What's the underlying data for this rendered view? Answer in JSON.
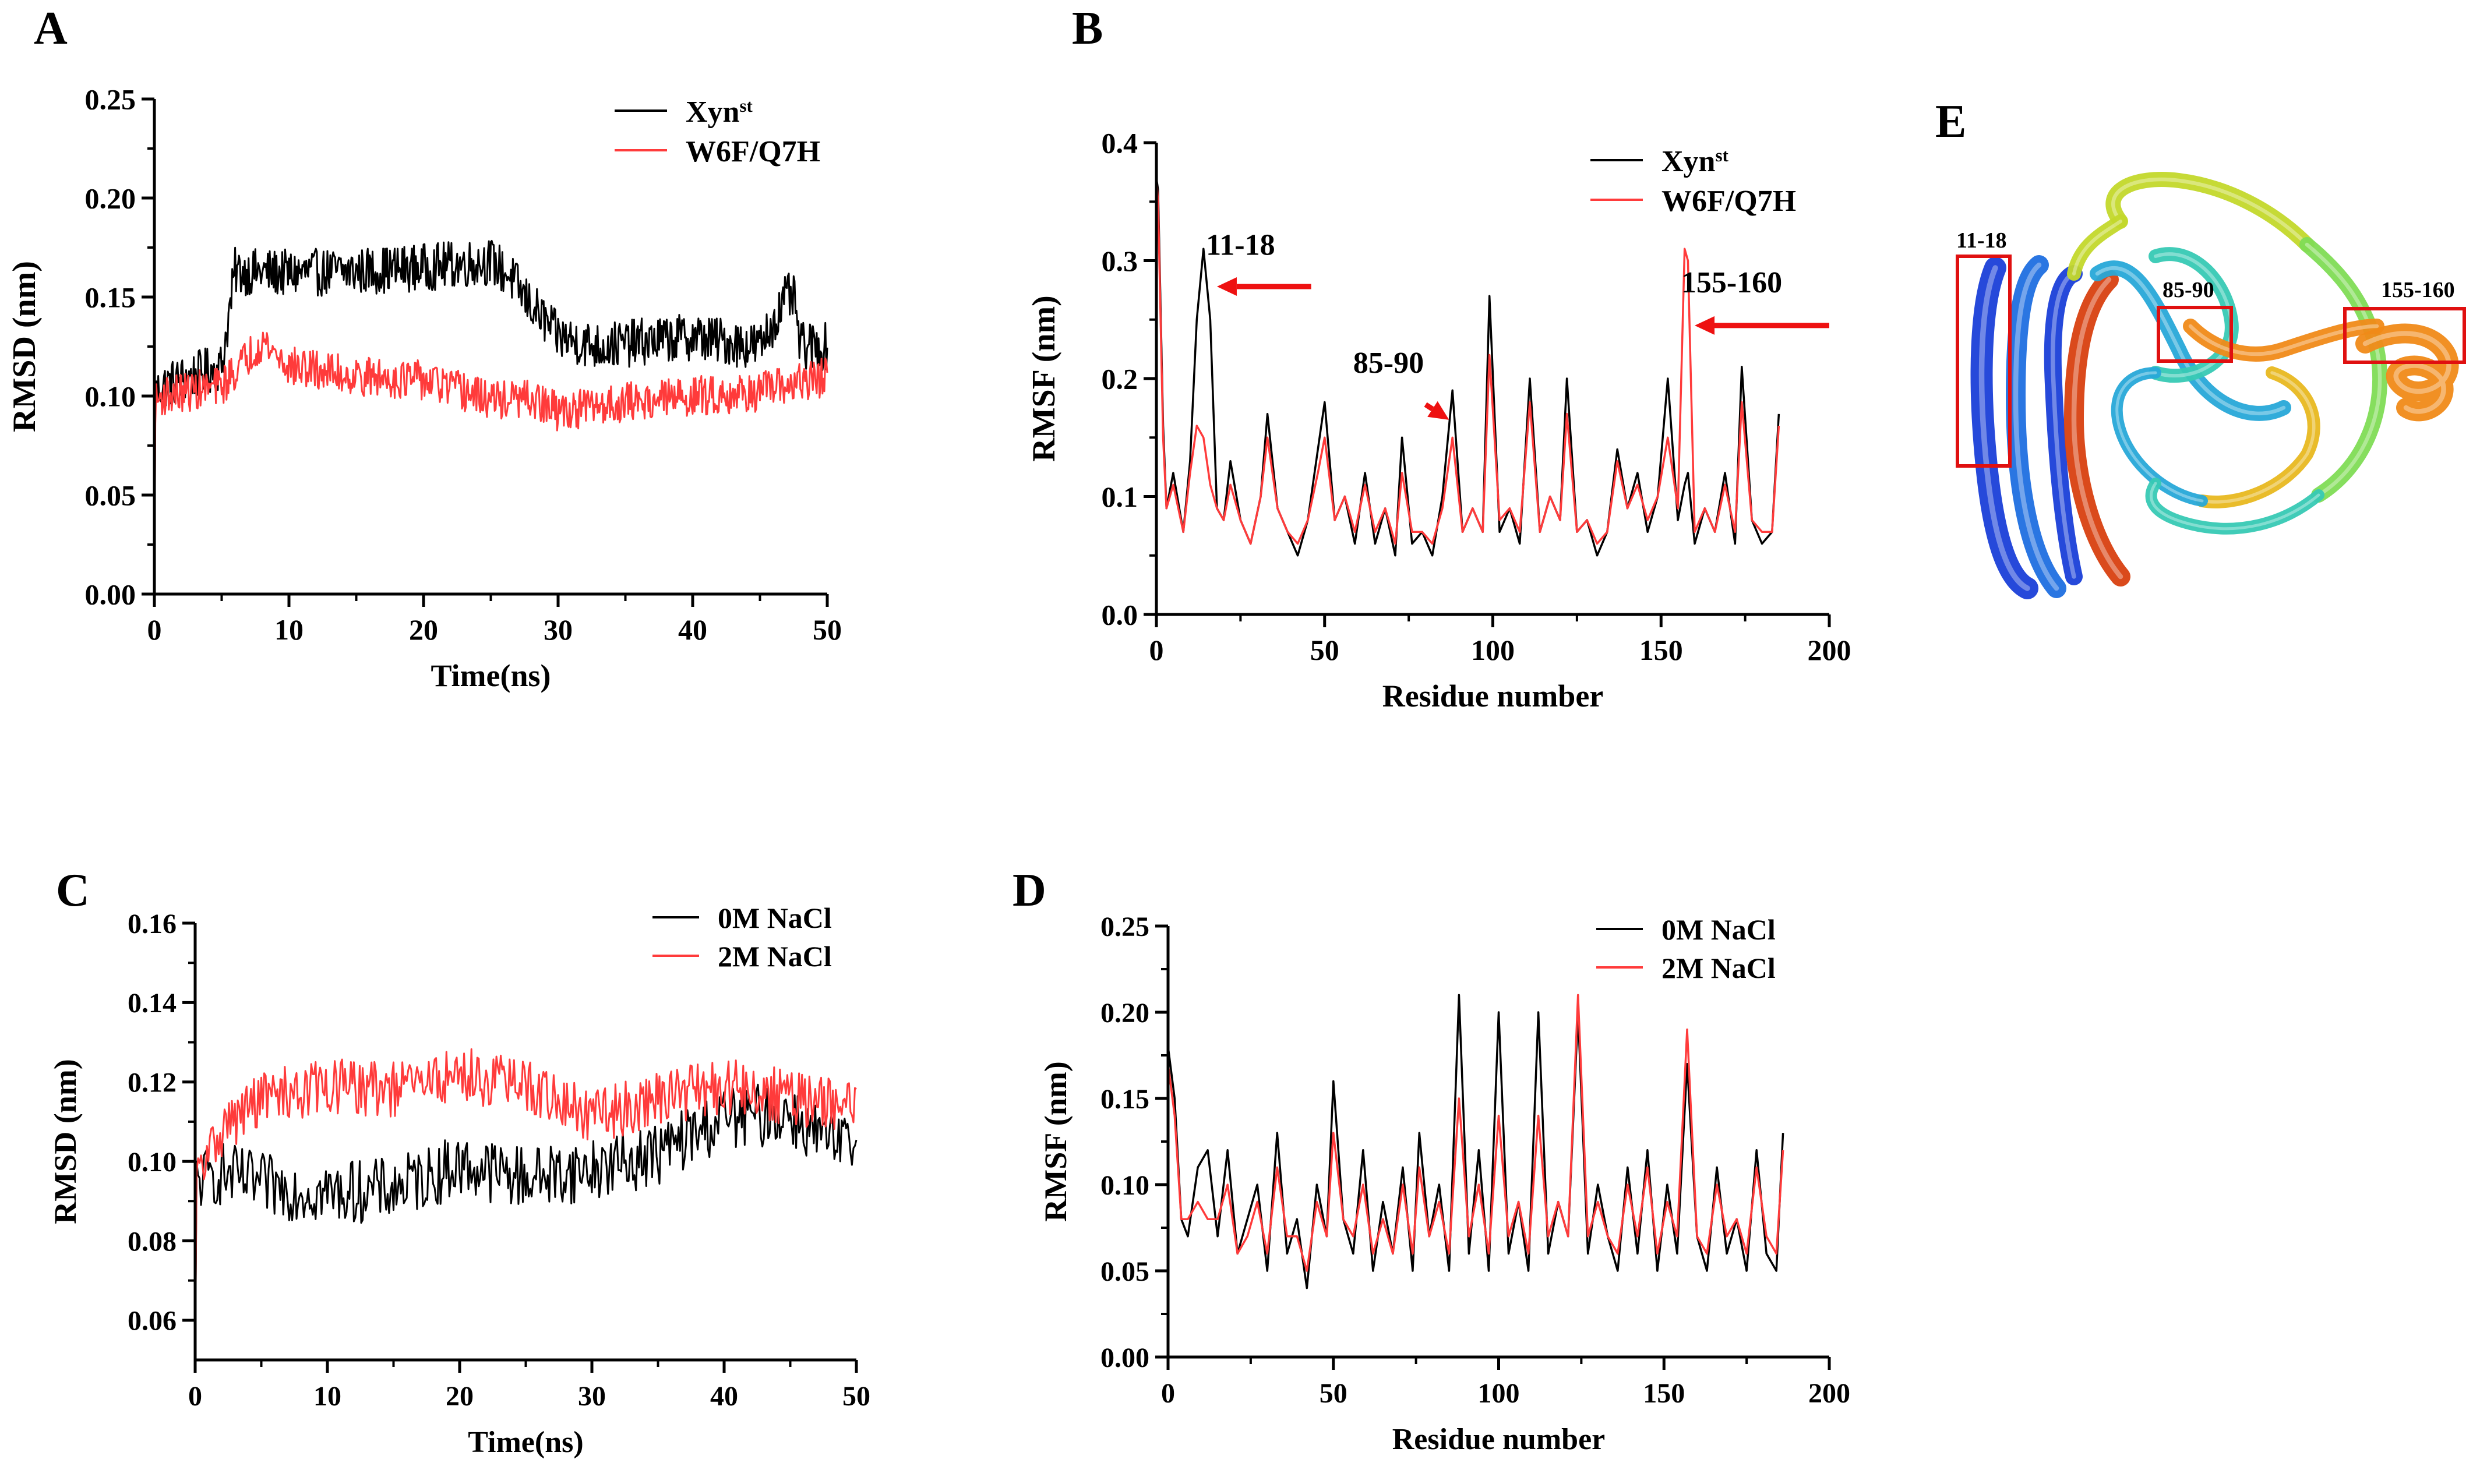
{
  "colors": {
    "series_a": "#000000",
    "series_b": "#ff3b3b",
    "annotation": "#ee1111",
    "box": "#e01010"
  },
  "panels": {
    "A": {
      "letter": "A"
    },
    "B": {
      "letter": "B"
    },
    "C": {
      "letter": "C"
    },
    "D": {
      "letter": "D"
    },
    "E": {
      "letter": "E",
      "region_labels": [
        "11-18",
        "85-90",
        "155-160"
      ],
      "ribbon_colors": [
        "#1a3fd8",
        "#1f6fe0",
        "#27a8d8",
        "#37c9b4",
        "#7fdc55",
        "#c3d82b",
        "#e8b820",
        "#f08a18",
        "#d84010"
      ]
    }
  },
  "chart_data": [
    {
      "id": "A",
      "type": "line",
      "xlabel": "Time(ns)",
      "ylabel": "RMSD (nm)",
      "xlim": [
        0,
        50
      ],
      "ylim": [
        0,
        0.25
      ],
      "xticks": [
        0,
        10,
        20,
        30,
        40,
        50
      ],
      "yticks": [
        0.0,
        0.05,
        0.1,
        0.15,
        0.2,
        0.25
      ],
      "ytick_labels": [
        "0.00",
        "0.05",
        "0.10",
        "0.15",
        "0.20",
        "0.25"
      ],
      "legend": "top-right",
      "grid": false,
      "series": [
        {
          "name": "Xyn",
          "name_sup": "st",
          "color": "#000000",
          "n": 700,
          "noise": 0.012,
          "x": [
            0,
            0.5,
            5,
            6,
            10,
            15,
            20,
            25,
            26.5,
            27.5,
            30,
            33,
            40,
            45,
            47,
            47.5,
            48,
            50
          ],
          "y": [
            0.1,
            0.105,
            0.115,
            0.163,
            0.162,
            0.163,
            0.165,
            0.168,
            0.16,
            0.15,
            0.13,
            0.125,
            0.13,
            0.125,
            0.15,
            0.15,
            0.125,
            0.125
          ]
        },
        {
          "name": "W6F/Q7H",
          "color": "#ff3b3b",
          "n": 700,
          "noise": 0.01,
          "x": [
            0,
            0.5,
            5,
            8,
            10,
            15,
            20,
            25,
            28,
            30,
            35,
            40,
            45,
            50
          ],
          "y": [
            0.095,
            0.1,
            0.105,
            0.128,
            0.115,
            0.11,
            0.108,
            0.098,
            0.098,
            0.092,
            0.097,
            0.1,
            0.102,
            0.11
          ]
        }
      ]
    },
    {
      "id": "B",
      "type": "line",
      "xlabel": "Residue number",
      "ylabel": "RMSF (nm)",
      "xlim": [
        0,
        200
      ],
      "ylim": [
        0,
        0.4
      ],
      "xticks": [
        0,
        50,
        100,
        150,
        200
      ],
      "yticks": [
        0.0,
        0.1,
        0.2,
        0.3,
        0.4
      ],
      "ytick_labels": [
        "0.0",
        "0.1",
        "0.2",
        "0.3",
        "0.4"
      ],
      "legend": "top-right",
      "grid": false,
      "series": [
        {
          "name": "Xyn",
          "name_sup": "st",
          "color": "#000000",
          "x": [
            0,
            0.5,
            2,
            3,
            5,
            8,
            10,
            12,
            14,
            16,
            18,
            20,
            22,
            25,
            28,
            31,
            33,
            36,
            39,
            42,
            45,
            48,
            50,
            53,
            56,
            59,
            62,
            65,
            68,
            71,
            73,
            76,
            79,
            82,
            85,
            88,
            91,
            94,
            97,
            99,
            102,
            105,
            108,
            111,
            114,
            117,
            120,
            122,
            125,
            128,
            131,
            134,
            137,
            140,
            143,
            146,
            149,
            152,
            155,
            157,
            158,
            160,
            163,
            166,
            169,
            172,
            174,
            177,
            180,
            183,
            185
          ],
          "y": [
            0.37,
            0.36,
            0.16,
            0.09,
            0.12,
            0.07,
            0.13,
            0.25,
            0.31,
            0.25,
            0.09,
            0.08,
            0.13,
            0.08,
            0.06,
            0.1,
            0.17,
            0.09,
            0.07,
            0.05,
            0.08,
            0.14,
            0.18,
            0.08,
            0.1,
            0.06,
            0.12,
            0.06,
            0.09,
            0.05,
            0.15,
            0.06,
            0.07,
            0.05,
            0.1,
            0.19,
            0.07,
            0.09,
            0.07,
            0.27,
            0.07,
            0.09,
            0.06,
            0.2,
            0.07,
            0.1,
            0.08,
            0.2,
            0.07,
            0.08,
            0.05,
            0.07,
            0.14,
            0.09,
            0.12,
            0.07,
            0.1,
            0.2,
            0.08,
            0.11,
            0.12,
            0.06,
            0.09,
            0.07,
            0.12,
            0.06,
            0.21,
            0.08,
            0.06,
            0.07,
            0.17
          ]
        },
        {
          "name": "W6F/Q7H",
          "color": "#ff3b3b",
          "x": [
            0,
            0.5,
            2,
            3,
            5,
            8,
            10,
            12,
            14,
            16,
            18,
            20,
            22,
            25,
            28,
            31,
            33,
            36,
            39,
            42,
            45,
            48,
            50,
            53,
            56,
            59,
            62,
            65,
            68,
            71,
            73,
            76,
            79,
            82,
            85,
            88,
            91,
            94,
            97,
            99,
            102,
            105,
            108,
            111,
            114,
            117,
            120,
            122,
            125,
            128,
            131,
            134,
            137,
            140,
            143,
            146,
            149,
            152,
            155,
            157,
            158,
            160,
            163,
            166,
            169,
            172,
            174,
            177,
            180,
            183,
            185
          ],
          "y": [
            0.37,
            0.35,
            0.15,
            0.09,
            0.11,
            0.07,
            0.12,
            0.16,
            0.15,
            0.11,
            0.09,
            0.08,
            0.11,
            0.08,
            0.06,
            0.1,
            0.15,
            0.09,
            0.07,
            0.06,
            0.08,
            0.12,
            0.15,
            0.08,
            0.1,
            0.07,
            0.11,
            0.07,
            0.09,
            0.06,
            0.12,
            0.07,
            0.07,
            0.06,
            0.09,
            0.15,
            0.07,
            0.09,
            0.07,
            0.22,
            0.08,
            0.09,
            0.07,
            0.18,
            0.07,
            0.1,
            0.08,
            0.17,
            0.07,
            0.08,
            0.06,
            0.07,
            0.13,
            0.09,
            0.11,
            0.08,
            0.1,
            0.15,
            0.09,
            0.31,
            0.3,
            0.07,
            0.09,
            0.07,
            0.11,
            0.07,
            0.18,
            0.08,
            0.07,
            0.07,
            0.16
          ]
        }
      ],
      "annotations": [
        {
          "text": "11-18",
          "tx": 25,
          "ty": 0.305,
          "ax1": 46,
          "ay1": 0.278,
          "ax2": 18,
          "ay2": 0.278
        },
        {
          "text": "85-90",
          "tx": 69,
          "ty": 0.205,
          "ax1": 80,
          "ay1": 0.178,
          "ax2": 87,
          "ay2": 0.165
        },
        {
          "text": "155-160",
          "tx": 171,
          "ty": 0.273,
          "ax1": 200,
          "ay1": 0.245,
          "ax2": 160,
          "ay2": 0.245
        }
      ]
    },
    {
      "id": "C",
      "type": "line",
      "xlabel": "Time(ns)",
      "ylabel": "RMSD (nm)",
      "xlim": [
        0,
        50
      ],
      "ylim": [
        0.05,
        0.16
      ],
      "xticks": [
        0,
        10,
        20,
        30,
        40,
        50
      ],
      "yticks": [
        0.06,
        0.08,
        0.1,
        0.12,
        0.14,
        0.16
      ],
      "ytick_labels": [
        "0.06",
        "0.08",
        "0.10",
        "0.12",
        "0.14",
        "0.16"
      ],
      "legend": "top-right",
      "grid": false,
      "series": [
        {
          "name": "0M NaCl",
          "color": "#000000",
          "n": 450,
          "noise": 0.008,
          "x": [
            0,
            2,
            5,
            10,
            15,
            20,
            25,
            30,
            35,
            40,
            45,
            48,
            50
          ],
          "y": [
            0.095,
            0.097,
            0.094,
            0.092,
            0.093,
            0.099,
            0.096,
            0.098,
            0.102,
            0.111,
            0.112,
            0.104,
            0.104
          ]
        },
        {
          "name": "2M NaCl",
          "color": "#ff3b3b",
          "n": 450,
          "noise": 0.007,
          "x": [
            0,
            2,
            5,
            10,
            15,
            20,
            25,
            30,
            35,
            40,
            45,
            50
          ],
          "y": [
            0.095,
            0.108,
            0.116,
            0.119,
            0.118,
            0.122,
            0.119,
            0.111,
            0.116,
            0.119,
            0.116,
            0.113
          ]
        }
      ]
    },
    {
      "id": "D",
      "type": "line",
      "xlabel": "Residue number",
      "ylabel": "RMSF (nm)",
      "xlim": [
        0,
        200
      ],
      "ylim": [
        0,
        0.25
      ],
      "xticks": [
        0,
        50,
        100,
        150,
        200
      ],
      "yticks": [
        0.0,
        0.05,
        0.1,
        0.15,
        0.2,
        0.25
      ],
      "ytick_labels": [
        "0.00",
        "0.05",
        "0.10",
        "0.15",
        "0.20",
        "0.25"
      ],
      "legend": "top-right",
      "grid": false,
      "series": [
        {
          "name": "0M NaCl",
          "color": "#000000",
          "x": [
            0,
            2,
            4,
            6,
            9,
            12,
            15,
            18,
            21,
            24,
            27,
            30,
            33,
            36,
            39,
            42,
            45,
            48,
            50,
            53,
            56,
            59,
            62,
            65,
            68,
            71,
            74,
            76,
            79,
            82,
            85,
            88,
            91,
            94,
            97,
            100,
            103,
            106,
            109,
            112,
            115,
            118,
            121,
            124,
            127,
            130,
            133,
            136,
            139,
            142,
            145,
            148,
            151,
            154,
            157,
            160,
            163,
            166,
            169,
            172,
            175,
            178,
            181,
            184,
            186
          ],
          "y": [
            0.18,
            0.15,
            0.08,
            0.07,
            0.11,
            0.12,
            0.07,
            0.12,
            0.06,
            0.08,
            0.1,
            0.05,
            0.13,
            0.06,
            0.08,
            0.04,
            0.1,
            0.07,
            0.16,
            0.08,
            0.06,
            0.12,
            0.05,
            0.09,
            0.06,
            0.11,
            0.05,
            0.13,
            0.07,
            0.1,
            0.05,
            0.21,
            0.06,
            0.12,
            0.05,
            0.2,
            0.06,
            0.09,
            0.05,
            0.2,
            0.06,
            0.09,
            0.07,
            0.2,
            0.06,
            0.1,
            0.07,
            0.05,
            0.11,
            0.06,
            0.12,
            0.05,
            0.1,
            0.06,
            0.17,
            0.07,
            0.05,
            0.11,
            0.06,
            0.08,
            0.05,
            0.12,
            0.06,
            0.05,
            0.13
          ]
        },
        {
          "name": "2M NaCl",
          "color": "#ff3b3b",
          "x": [
            0,
            2,
            4,
            6,
            9,
            12,
            15,
            18,
            21,
            24,
            27,
            30,
            33,
            36,
            39,
            42,
            45,
            48,
            50,
            53,
            56,
            59,
            62,
            65,
            68,
            71,
            74,
            76,
            79,
            82,
            85,
            88,
            91,
            94,
            97,
            100,
            103,
            106,
            109,
            112,
            115,
            118,
            121,
            124,
            127,
            130,
            133,
            136,
            139,
            142,
            145,
            148,
            151,
            154,
            157,
            160,
            163,
            166,
            169,
            172,
            175,
            178,
            181,
            184,
            186
          ],
          "y": [
            0.17,
            0.14,
            0.08,
            0.08,
            0.09,
            0.08,
            0.08,
            0.1,
            0.06,
            0.07,
            0.09,
            0.06,
            0.11,
            0.07,
            0.07,
            0.05,
            0.09,
            0.07,
            0.13,
            0.08,
            0.07,
            0.1,
            0.06,
            0.08,
            0.06,
            0.1,
            0.06,
            0.11,
            0.07,
            0.09,
            0.06,
            0.15,
            0.07,
            0.1,
            0.06,
            0.14,
            0.07,
            0.09,
            0.06,
            0.14,
            0.07,
            0.09,
            0.07,
            0.21,
            0.07,
            0.09,
            0.07,
            0.06,
            0.1,
            0.07,
            0.11,
            0.06,
            0.09,
            0.07,
            0.19,
            0.07,
            0.06,
            0.1,
            0.07,
            0.08,
            0.06,
            0.11,
            0.07,
            0.06,
            0.12
          ]
        }
      ]
    }
  ]
}
